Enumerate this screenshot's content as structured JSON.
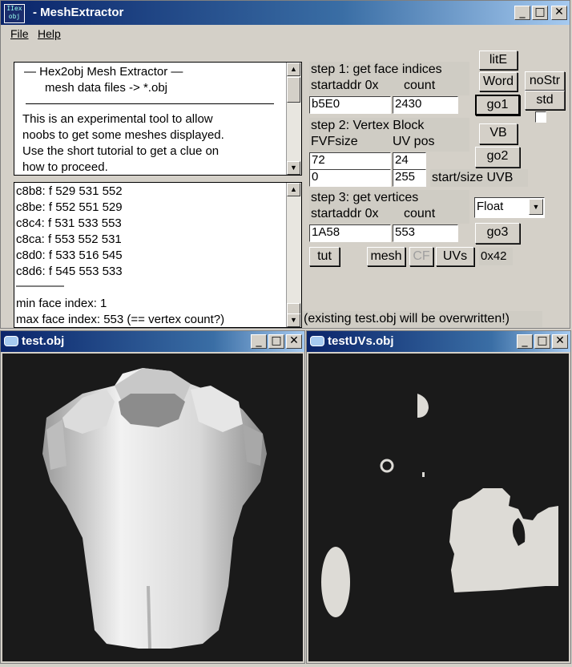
{
  "main_window": {
    "icon_text": "IIex obj",
    "title": "MeshExtractor",
    "title_prefix": "- ",
    "controls": {
      "minimize": "_",
      "maximize": "□",
      "close": "✕"
    }
  },
  "menu": {
    "file": "File",
    "help": "Help"
  },
  "info_box": {
    "line1": "—   Hex2obj Mesh Extractor   —",
    "line2": "mesh data files -> *.obj",
    "para": [
      "This is an experimental tool to allow",
      "noobs to get some meshes displayed.",
      "Use the short tutorial to get a clue on",
      "how to proceed."
    ]
  },
  "log_box": {
    "lines": [
      "c8b8: f  529 531 552",
      "c8be: f  552 551 529",
      "c8c4: f  531 533 553",
      "c8ca: f  553 552 531",
      "c8d0: f  533 516 545",
      "c8d6: f  545 553 533"
    ],
    "separator": "————",
    "min_line": "min face index: 1",
    "max_line": "max face index: 553 (== vertex count?)"
  },
  "step1": {
    "title": "step 1: get face indices",
    "addr_label": "startaddr 0x",
    "count_label": "count",
    "addr_value": "b5E0",
    "count_value": "2430"
  },
  "step2": {
    "title": "step 2: Vertex Block",
    "fvf_label": "FVFsize",
    "uvpos_label": "UV pos",
    "fvf_value": "72",
    "uvpos_value": "24",
    "start_value": "0",
    "size_value": "255",
    "start_size_label": "start/size UVB"
  },
  "step3": {
    "title": "step 3: get vertices",
    "addr_label": "startaddr 0x",
    "count_label": "count",
    "addr_value": "1A58",
    "count_value": "553",
    "type_select": "Float"
  },
  "buttons": {
    "lite": "litE",
    "word": "Word",
    "nostr": "noStr",
    "go1": "go1",
    "std": "std",
    "vb": "VB",
    "go2": "go2",
    "go3": "go3",
    "tut": "tut",
    "mesh": "mesh",
    "cf": "CF",
    "uvs": "UVs",
    "hex": "0x42"
  },
  "overwrite_note": "(existing test.obj will be overwritten!)",
  "window_obj": {
    "title": "test.obj"
  },
  "window_uvs": {
    "title": "testUVs.obj"
  },
  "colors": {
    "title_dark": "#0a246a",
    "title_light": "#a6caf0",
    "viewport_bg": "#1a1a1a",
    "uv_fill": "#dddbd6"
  }
}
